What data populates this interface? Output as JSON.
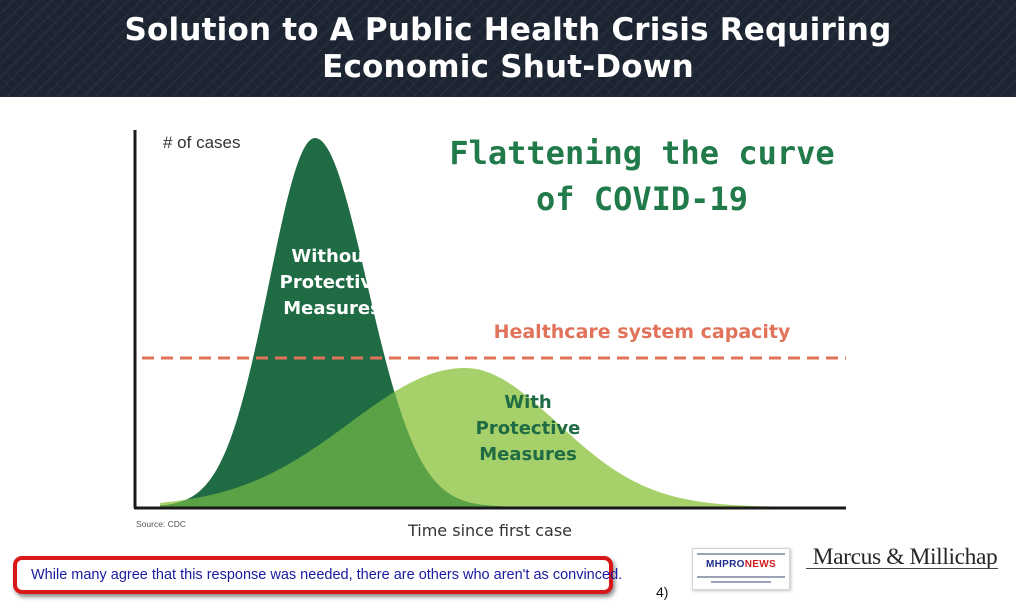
{
  "slide": {
    "title_line1": "Solution to A Public Health Crisis Requiring",
    "title_line2": "Economic Shut-Down",
    "callout_text": "While many agree that this response was needed, there are others who aren't as convinced.",
    "page_number": "4)"
  },
  "chart_data": {
    "type": "area",
    "title_line1": "Flattening the curve",
    "title_line2": "of COVID-19",
    "ylabel": "# of cases",
    "xlabel": "Time since first case",
    "source": "Source: CDC",
    "series": [
      {
        "name": "Without Protective Measures",
        "label_lines": [
          "Without",
          "Protective",
          "Measures"
        ],
        "color": "#1f6b43"
      },
      {
        "name": "With Protective Measures",
        "label_lines": [
          "With",
          "Protective",
          "Measures"
        ],
        "color": "#a6d16a"
      }
    ],
    "threshold": {
      "label": "Healthcare system capacity",
      "color": "#e0735a"
    },
    "overlap_color": "#5ba246",
    "title_color": "#217a4a"
  },
  "logos": {
    "mhpronews_a": "MHPRO",
    "mhpronews_b": "NEWS",
    "marcus_millichap": "Marcus & Millichap"
  }
}
